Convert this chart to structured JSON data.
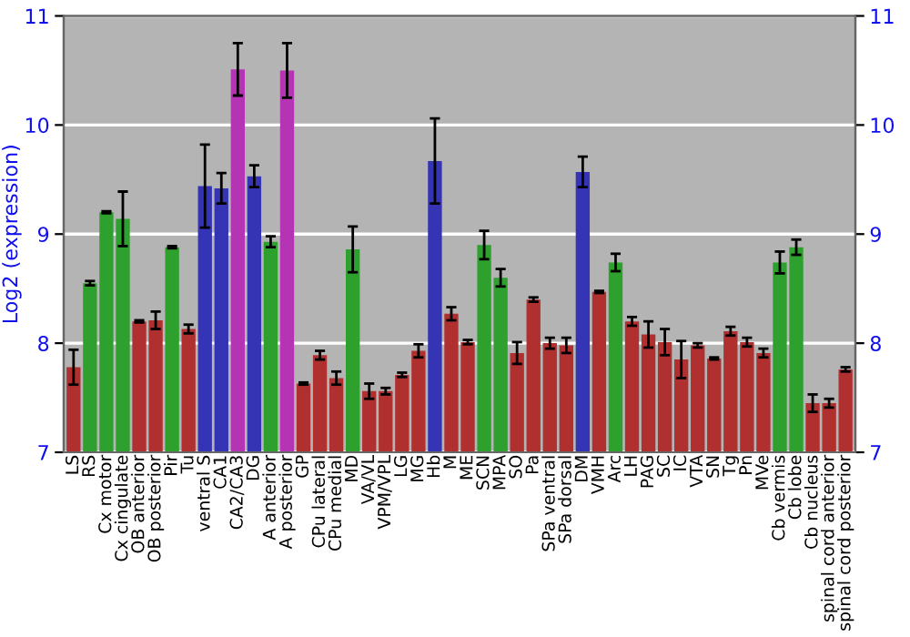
{
  "chart_data": {
    "type": "bar",
    "ylabel": "Log2 (expression)",
    "categories": [
      "LS",
      "RS",
      "Cx motor",
      "Cx cingulate",
      "OB anterior",
      "OB posterior",
      "Pir",
      "Tu",
      "ventral S",
      "CA1",
      "CA2/CA3",
      "DG",
      "A anterior",
      "A posterior",
      "GP",
      "CPu lateral",
      "CPu medial",
      "MD",
      "VA/VL",
      "VPM/VPL",
      "LG",
      "MG",
      "Hb",
      "M",
      "ME",
      "SCN",
      "MPA",
      "SO",
      "Pa",
      "SPa ventral",
      "SPa dorsal",
      "DM",
      "VMH",
      "Arc",
      "LH",
      "PAG",
      "SC",
      "IC",
      "VTA",
      "SN",
      "Tg",
      "Pn",
      "MVe",
      "Cb vermis",
      "Cb lobe",
      "Cb nucleus",
      "spinal cord anterior",
      "spinal cord posterior"
    ],
    "values": [
      7.78,
      8.55,
      9.2,
      9.14,
      8.2,
      8.21,
      8.88,
      8.13,
      9.44,
      9.42,
      10.51,
      9.53,
      8.93,
      10.5,
      7.63,
      7.89,
      7.68,
      8.86,
      7.56,
      7.56,
      7.71,
      7.93,
      9.67,
      8.27,
      8.01,
      8.9,
      8.6,
      7.91,
      8.4,
      8.0,
      7.98,
      9.57,
      8.47,
      8.74,
      8.2,
      8.08,
      8.01,
      7.85,
      7.98,
      7.86,
      8.11,
      8.01,
      7.91,
      8.74,
      8.88,
      7.45,
      7.45,
      7.76
    ],
    "errors": [
      0.16,
      0.02,
      0.01,
      0.25,
      0.01,
      0.08,
      0.01,
      0.04,
      0.38,
      0.14,
      0.24,
      0.1,
      0.05,
      0.25,
      0.01,
      0.04,
      0.06,
      0.21,
      0.07,
      0.03,
      0.02,
      0.06,
      0.39,
      0.06,
      0.02,
      0.13,
      0.08,
      0.1,
      0.02,
      0.05,
      0.07,
      0.14,
      0.01,
      0.08,
      0.04,
      0.12,
      0.12,
      0.17,
      0.02,
      0.01,
      0.04,
      0.04,
      0.04,
      0.1,
      0.07,
      0.08,
      0.04,
      0.02
    ],
    "colors": [
      "#b03030",
      "#2ea02e",
      "#2ea02e",
      "#2ea02e",
      "#b03030",
      "#b03030",
      "#2ea02e",
      "#b03030",
      "#3434b4",
      "#3434b4",
      "#b434b4",
      "#3434b4",
      "#2ea02e",
      "#b434b4",
      "#b03030",
      "#b03030",
      "#b03030",
      "#2ea02e",
      "#b03030",
      "#b03030",
      "#b03030",
      "#b03030",
      "#3434b4",
      "#b03030",
      "#b03030",
      "#2ea02e",
      "#2ea02e",
      "#b03030",
      "#b03030",
      "#b03030",
      "#b03030",
      "#3434b4",
      "#b03030",
      "#2ea02e",
      "#b03030",
      "#b03030",
      "#b03030",
      "#b03030",
      "#b03030",
      "#b03030",
      "#b03030",
      "#b03030",
      "#b03030",
      "#2ea02e",
      "#2ea02e",
      "#b03030",
      "#b03030",
      "#b03030"
    ],
    "ylim": [
      7,
      11
    ],
    "yticks": [
      7,
      8,
      9,
      10,
      11
    ],
    "y2lim": [
      7,
      11
    ],
    "y2ticks": [
      7,
      8,
      9,
      10,
      11
    ],
    "grid": "y"
  }
}
